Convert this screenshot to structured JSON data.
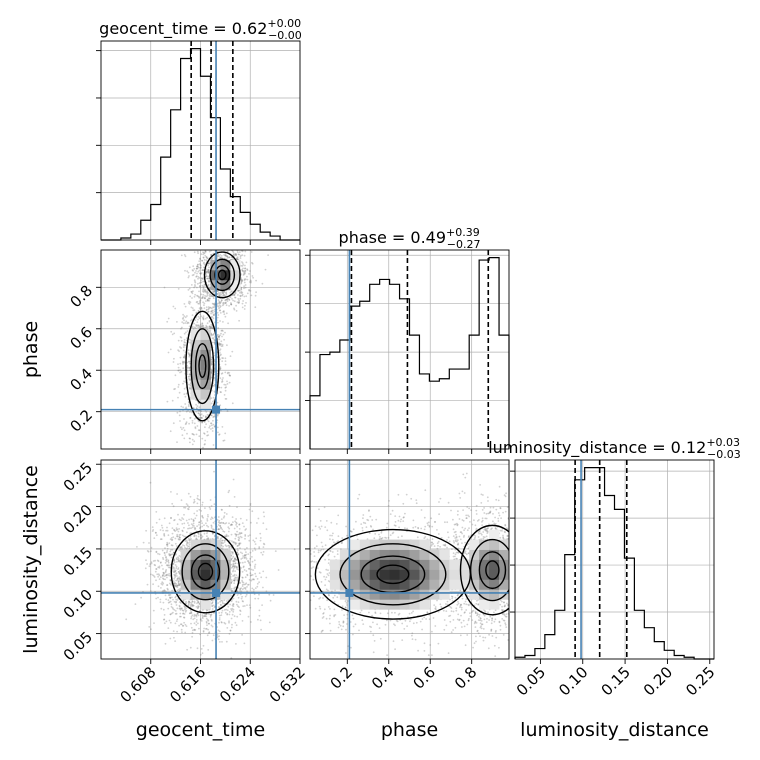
{
  "chart_data": {
    "type": "corner",
    "parameters": [
      "geocent_time",
      "phase",
      "luminosity_distance"
    ],
    "truth_values": {
      "geocent_time": 0.6185,
      "phase": 0.21,
      "luminosity_distance": 0.098
    },
    "truth_color": "#4682b4",
    "grid": true,
    "titles": {
      "geocent_time": {
        "label": "geocent_time = 0.62",
        "sup": "+0.00",
        "sub": "−0.00"
      },
      "phase": {
        "label": "phase = 0.49",
        "sup": "+0.39",
        "sub": "−0.27"
      },
      "luminosity_distance": {
        "label": "luminosity_distance = 0.12",
        "sup": "+0.03",
        "sub": "−0.03"
      }
    },
    "axis_labels": {
      "x": [
        "geocent_time",
        "phase",
        "luminosity_distance"
      ],
      "y": [
        "phase",
        "luminosity_distance"
      ]
    },
    "ticks": {
      "geocent_time": {
        "values": [
          0.608,
          0.616,
          0.624,
          0.632
        ],
        "labels": [
          "0.608",
          "0.616",
          "0.624",
          "0.632"
        ]
      },
      "phase": {
        "values": [
          0.2,
          0.4,
          0.6,
          0.8
        ],
        "labels": [
          "0.2",
          "0.4",
          "0.6",
          "0.8"
        ]
      },
      "luminosity_distance": {
        "values": [
          0.05,
          0.1,
          0.15,
          0.2,
          0.25
        ],
        "labels": [
          "0.05",
          "0.10",
          "0.15",
          "0.20",
          "0.25"
        ]
      }
    },
    "ranges": {
      "geocent_time": [
        0.6,
        0.632
      ],
      "phase": [
        0.02,
        0.98
      ],
      "luminosity_distance": [
        0.02,
        0.255
      ]
    },
    "histograms": {
      "geocent_time": {
        "edges": [
          0.6,
          0.6016,
          0.6032,
          0.6048,
          0.6064,
          0.608,
          0.6096,
          0.6112,
          0.6128,
          0.6144,
          0.616,
          0.6176,
          0.6192,
          0.6208,
          0.6224,
          0.624,
          0.6256,
          0.6272,
          0.6288,
          0.6304,
          0.632
        ],
        "counts": [
          0,
          0,
          1,
          3,
          10,
          18,
          42,
          66,
          92,
          97,
          83,
          62,
          36,
          22,
          14,
          8,
          4,
          2,
          0,
          0
        ],
        "quantiles": [
          0.6145,
          0.6177,
          0.6212
        ]
      },
      "phase": {
        "edges": [
          0.02,
          0.068,
          0.116,
          0.164,
          0.212,
          0.26,
          0.308,
          0.356,
          0.404,
          0.452,
          0.5,
          0.548,
          0.596,
          0.644,
          0.692,
          0.74,
          0.788,
          0.836,
          0.884,
          0.932,
          0.98
        ],
        "counts": [
          22,
          39,
          40,
          45,
          59,
          61,
          68,
          70,
          68,
          62,
          47,
          31,
          28,
          29,
          33,
          33,
          47,
          78,
          79,
          47
        ],
        "quantiles": [
          0.22,
          0.49,
          0.88
        ]
      },
      "luminosity_distance": {
        "edges": [
          0.02,
          0.03175,
          0.0435,
          0.05525,
          0.067,
          0.07875,
          0.0905,
          0.10225,
          0.114,
          0.12575,
          0.1375,
          0.14925,
          0.161,
          0.17275,
          0.1845,
          0.19625,
          0.208,
          0.21975,
          0.2315,
          0.24325,
          0.255
        ],
        "counts": [
          1,
          2,
          6,
          14,
          28,
          60,
          103,
          110,
          110,
          94,
          86,
          58,
          28,
          18,
          10,
          5,
          2,
          1,
          0,
          0
        ],
        "quantiles": [
          0.091,
          0.12,
          0.152
        ]
      }
    },
    "joint": {
      "phase_vs_geocent_time": {
        "x_param": "geocent_time",
        "y_param": "phase",
        "modes": [
          [
            0.6163,
            0.42,
            0.0012,
            0.12,
            0.4
          ],
          [
            0.6195,
            0.86,
            0.0013,
            0.05,
            0.6
          ]
        ],
        "ridge_slope": 4.7
      },
      "luminosity_distance_vs_geocent_time": {
        "x_param": "geocent_time",
        "y_param": "luminosity_distance",
        "modes": [
          [
            0.6168,
            0.123,
            0.0025,
            0.022,
            1.0
          ]
        ]
      },
      "luminosity_distance_vs_phase": {
        "x_param": "phase",
        "y_param": "luminosity_distance",
        "modes": [
          [
            0.42,
            0.12,
            0.17,
            0.024,
            0.55
          ],
          [
            0.9,
            0.125,
            0.07,
            0.024,
            0.45
          ]
        ]
      }
    }
  }
}
